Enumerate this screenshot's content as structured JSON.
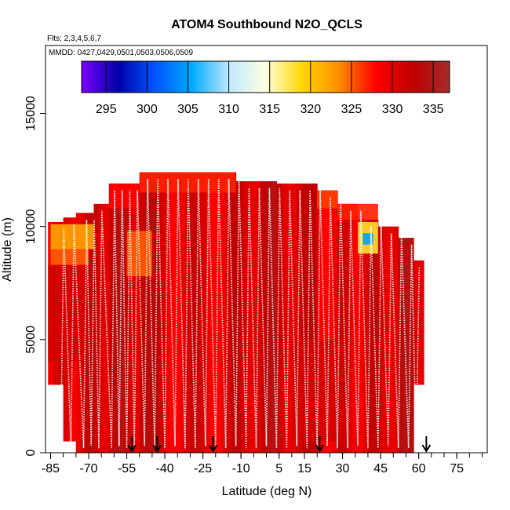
{
  "chart_data": {
    "type": "heatmap",
    "title": "ATOM4 Southbound N2O_QCLS",
    "flights_label": "Flts: 2,3,4,5,6,7",
    "dates_label": "MMDD: 0427,0429,0501,0503,0506,0509",
    "xlabel": "Latitude (deg N)",
    "ylabel": "Altitude (m)",
    "xlim": [
      -87,
      87
    ],
    "ylim": [
      0,
      18000
    ],
    "x_ticks": [
      -85,
      -70,
      -55,
      -40,
      -25,
      -10,
      5,
      15,
      30,
      45,
      60,
      75
    ],
    "y_ticks": [
      0,
      5000,
      10000,
      15000
    ],
    "colorbar": {
      "min": 292,
      "max": 337,
      "ticks": [
        295,
        300,
        305,
        310,
        315,
        320,
        325,
        330,
        335
      ],
      "colors": [
        "#7b00ff",
        "#0000aa",
        "#0055ff",
        "#00aaff",
        "#bfe8ff",
        "#ffffe0",
        "#ffd700",
        "#ff8c00",
        "#ff0000",
        "#c00000",
        "#a52a2a"
      ]
    },
    "curtain_columns": [
      {
        "lat_min": -86,
        "lat_max": -80,
        "alt_min": 3000,
        "alt_max": 10200
      },
      {
        "lat_min": -80,
        "lat_max": -75,
        "alt_min": 500,
        "alt_max": 10400
      },
      {
        "lat_min": -75,
        "lat_max": -68,
        "alt_min": 0,
        "alt_max": 10600
      },
      {
        "lat_min": -68,
        "lat_max": -62,
        "alt_min": 0,
        "alt_max": 11000
      },
      {
        "lat_min": -62,
        "lat_max": -56,
        "alt_min": 0,
        "alt_max": 11900
      },
      {
        "lat_min": -56,
        "lat_max": -50,
        "alt_min": 0,
        "alt_max": 11900
      },
      {
        "lat_min": -50,
        "lat_max": -12,
        "alt_min": 0,
        "alt_max": 12400
      },
      {
        "lat_min": -12,
        "lat_max": 4,
        "alt_min": 0,
        "alt_max": 12000
      },
      {
        "lat_min": 4,
        "lat_max": 20,
        "alt_min": 0,
        "alt_max": 11900
      },
      {
        "lat_min": 20,
        "lat_max": 28,
        "alt_min": 0,
        "alt_max": 11600
      },
      {
        "lat_min": 28,
        "lat_max": 36,
        "alt_min": 0,
        "alt_max": 11000
      },
      {
        "lat_min": 36,
        "lat_max": 44,
        "alt_min": 0,
        "alt_max": 10300
      },
      {
        "lat_min": 44,
        "lat_max": 52,
        "alt_min": 0,
        "alt_max": 10000
      },
      {
        "lat_min": 52,
        "lat_max": 58,
        "alt_min": 0,
        "alt_max": 9500
      },
      {
        "lat_min": 58,
        "lat_max": 62,
        "alt_min": 3000,
        "alt_max": 8500
      }
    ],
    "low_value_patches": [
      {
        "lat_min": -85,
        "lat_max": -68,
        "alt_min": 9000,
        "alt_max": 10100,
        "value": 322
      },
      {
        "lat_min": -85,
        "lat_max": -70,
        "alt_min": 8300,
        "alt_max": 9000,
        "value": 325
      },
      {
        "lat_min": -50,
        "lat_max": -12,
        "alt_min": 11500,
        "alt_max": 12400,
        "value": 327
      },
      {
        "lat_min": -62,
        "lat_max": -50,
        "alt_min": 10800,
        "alt_max": 11900,
        "value": 328
      },
      {
        "lat_min": -55,
        "lat_max": -45,
        "alt_min": 7800,
        "alt_max": 9800,
        "value": 325
      },
      {
        "lat_min": 36,
        "lat_max": 44,
        "alt_min": 8800,
        "alt_max": 10200,
        "value": 318
      },
      {
        "lat_min": 38,
        "lat_max": 42,
        "alt_min": 9200,
        "alt_max": 9700,
        "value": 305
      },
      {
        "lat_min": 28,
        "lat_max": 44,
        "alt_min": 10300,
        "alt_max": 11000,
        "value": 327
      },
      {
        "lat_min": 20,
        "lat_max": 28,
        "alt_min": 10800,
        "alt_max": 11600,
        "value": 326
      },
      {
        "lat_min": -86,
        "lat_max": -70,
        "alt_min": 4000,
        "alt_max": 8300,
        "value": 331
      },
      {
        "lat_min": 10,
        "lat_max": 30,
        "alt_min": 500,
        "alt_max": 5000,
        "value": 331
      }
    ],
    "profile_turn_latitudes": [
      -81,
      -77,
      -72,
      -69,
      -66,
      -61,
      -58,
      -55,
      -52,
      -48,
      -44,
      -40,
      -36,
      -32,
      -28,
      -24,
      -20,
      -16,
      -12,
      -8,
      -4,
      0,
      4,
      8,
      12,
      16,
      20,
      24,
      28,
      32,
      36,
      40,
      44,
      48,
      52,
      56,
      59
    ],
    "arrow_markers_lat": [
      -53,
      -43,
      -21,
      21,
      63
    ]
  }
}
